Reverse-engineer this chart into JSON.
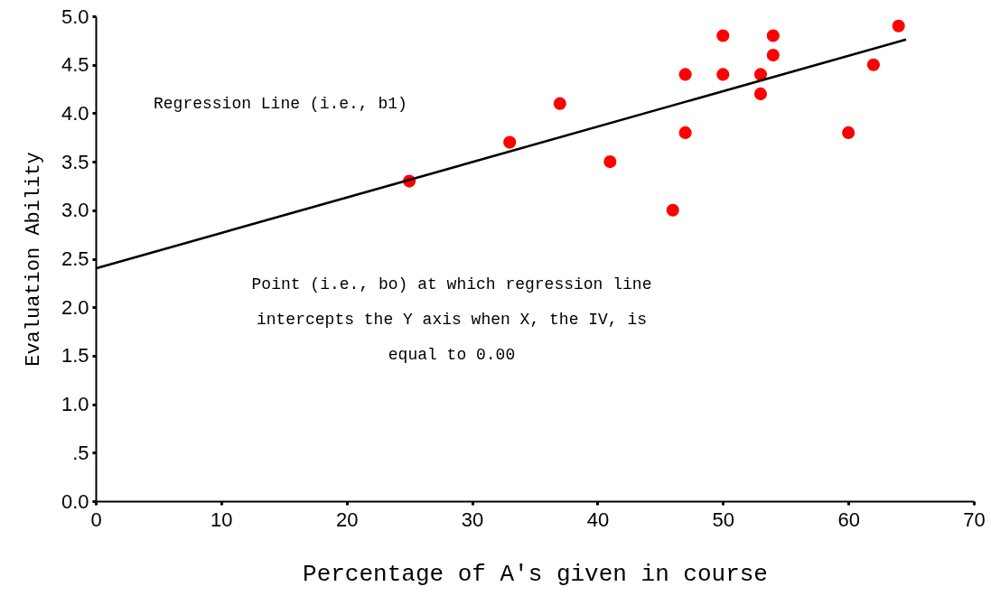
{
  "chart_data": {
    "type": "scatter",
    "xlabel": "Percentage of A's given in course",
    "ylabel": "Evaluation Ability",
    "xlim": [
      0,
      70
    ],
    "xticks": [
      0,
      10,
      20,
      30,
      40,
      50,
      60,
      70
    ],
    "ylim": [
      0,
      5
    ],
    "yticks": [
      {
        "value": 0,
        "label": "0.0"
      },
      {
        "value": 0.5,
        "label": ".5"
      },
      {
        "value": 1,
        "label": "1.0"
      },
      {
        "value": 1.5,
        "label": "1.5"
      },
      {
        "value": 2,
        "label": "2.0"
      },
      {
        "value": 2.5,
        "label": "2.5"
      },
      {
        "value": 3,
        "label": "3.0"
      },
      {
        "value": 3.5,
        "label": "3.5"
      },
      {
        "value": 4,
        "label": "4.0"
      },
      {
        "value": 4.5,
        "label": "4.5"
      },
      {
        "value": 5,
        "label": "5.0"
      }
    ],
    "grid": false,
    "series": [
      {
        "marker": "circle",
        "color": "#ff0000",
        "x": [
          25,
          33,
          37,
          41,
          46,
          47,
          47,
          50,
          50,
          53,
          53,
          54,
          54,
          60,
          62,
          64
        ],
        "values": [
          3.3,
          3.7,
          4.1,
          3.5,
          3.0,
          4.4,
          3.8,
          4.8,
          4.4,
          4.4,
          4.2,
          4.8,
          4.6,
          3.8,
          4.5,
          4.9
        ]
      },
      {
        "type": "line",
        "color": "#000000",
        "line_style": "solid",
        "x": [
          0,
          64.6
        ],
        "values": [
          2.4,
          4.76
        ]
      }
    ],
    "annotations": [
      "Regression Line (i.e., b1)",
      "Point (i.e., bo) at which regression line\nintercepts the Y axis when X, the IV, is\nequal to 0.00"
    ]
  }
}
